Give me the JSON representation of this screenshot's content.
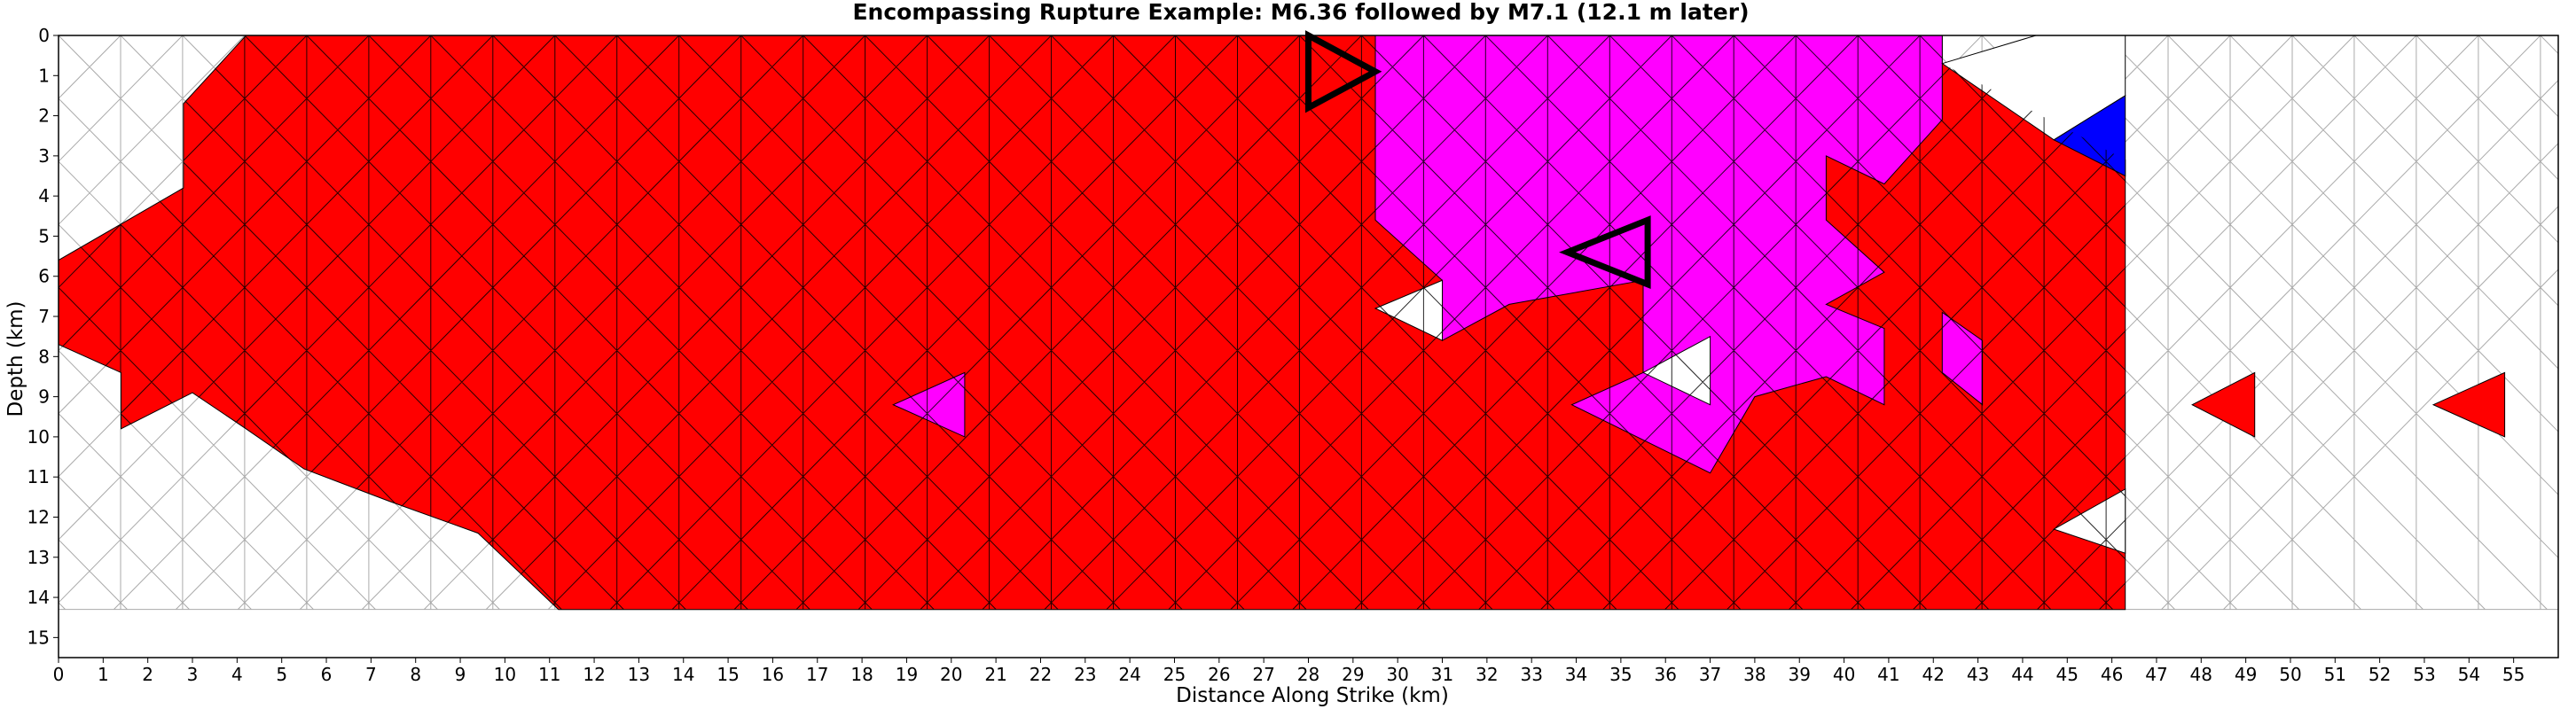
{
  "chart_data": {
    "type": "heatmap",
    "title": "Encompassing Rupture Example: M6.36 followed by M7.1 (12.1 m later)",
    "xlabel": "Distance Along Strike (km)",
    "ylabel": "Depth (km)",
    "xlim": [
      0,
      56
    ],
    "ylim": [
      15.5,
      0
    ],
    "xticks": [
      0,
      1,
      2,
      3,
      4,
      5,
      6,
      7,
      8,
      9,
      10,
      11,
      12,
      13,
      14,
      15,
      16,
      17,
      18,
      19,
      20,
      21,
      22,
      23,
      24,
      25,
      26,
      27,
      28,
      29,
      30,
      31,
      32,
      33,
      34,
      35,
      36,
      37,
      38,
      39,
      40,
      41,
      42,
      43,
      44,
      45,
      46,
      47,
      48,
      49,
      50,
      51,
      52,
      53,
      54,
      55
    ],
    "yticks": [
      0,
      1,
      2,
      3,
      4,
      5,
      6,
      7,
      8,
      9,
      10,
      11,
      12,
      13,
      14,
      15
    ],
    "grid": "triangular mesh",
    "colors": {
      "unruptured": "#ffffff",
      "first_event": "#ff0000",
      "second_event": "#ff00ff",
      "other": "#0000ff",
      "fault_edges": "#000000",
      "unruptured_edges": "#aaaaaa",
      "hypocenter_outline": "#000000"
    },
    "fault_extent": {
      "x": [
        0,
        46.3
      ],
      "depth": [
        0,
        14.3
      ]
    },
    "ruptured_region_first": {
      "outline": [
        [
          4.2,
          0
        ],
        [
          42.2,
          0
        ],
        [
          42.2,
          0.7
        ],
        [
          46.3,
          3.1
        ],
        [
          46.3,
          14.3
        ],
        [
          11.2,
          14.3
        ],
        [
          9.4,
          12.4
        ],
        [
          7.4,
          11.6
        ],
        [
          5.5,
          10.8
        ],
        [
          4.2,
          9.8
        ],
        [
          3,
          8.9
        ],
        [
          1.4,
          9.8
        ],
        [
          1.4,
          8.4
        ],
        [
          0,
          7.7
        ],
        [
          0,
          5.6
        ],
        [
          2.8,
          3.8
        ],
        [
          2.8,
          1.7
        ]
      ]
    },
    "ruptured_region_second": {
      "outline": [
        [
          29.5,
          0
        ],
        [
          42.2,
          0
        ],
        [
          42.2,
          2.1
        ],
        [
          40.9,
          3.7
        ],
        [
          39.6,
          3.0
        ],
        [
          39.6,
          4.6
        ],
        [
          40.9,
          5.9
        ],
        [
          39.6,
          6.7
        ],
        [
          40.9,
          7.3
        ],
        [
          40.9,
          9.2
        ],
        [
          39.6,
          8.5
        ],
        [
          38.0,
          9.0
        ],
        [
          37.0,
          10.9
        ],
        [
          33.9,
          9.2
        ],
        [
          35.5,
          8.4
        ],
        [
          35.5,
          6.1
        ],
        [
          32.5,
          6.7
        ],
        [
          31.0,
          7.6
        ],
        [
          31.0,
          6.1
        ],
        [
          29.5,
          4.6
        ]
      ]
    },
    "unruptured_patches": [
      [
        [
          29.5,
          6.8
        ],
        [
          31.0,
          6.1
        ],
        [
          31.0,
          7.6
        ]
      ],
      [
        [
          35.5,
          8.4
        ],
        [
          37.0,
          7.5
        ],
        [
          37.0,
          9.2
        ]
      ],
      [
        [
          42.2,
          0.7
        ],
        [
          44.3,
          0
        ],
        [
          46.3,
          0
        ],
        [
          46.3,
          1.5
        ],
        [
          44.7,
          2.6
        ]
      ],
      [
        [
          44.7,
          12.3
        ],
        [
          46.3,
          11.3
        ],
        [
          46.3,
          12.9
        ]
      ]
    ],
    "second_event_isolated": [
      [
        [
          18.7,
          9.2
        ],
        [
          20.3,
          8.4
        ],
        [
          20.3,
          10.0
        ]
      ],
      [
        [
          42.2,
          6.9
        ],
        [
          43.1,
          7.6
        ],
        [
          43.1,
          9.2
        ],
        [
          42.2,
          8.4
        ]
      ]
    ],
    "other_event_triangles": [
      [
        [
          44.7,
          2.6
        ],
        [
          46.3,
          1.5
        ],
        [
          46.3,
          3.5
        ]
      ]
    ],
    "isolated_first_event_triangles": [
      [
        [
          47.8,
          9.2
        ],
        [
          49.2,
          8.4
        ],
        [
          49.2,
          10.0
        ]
      ],
      [
        [
          53.2,
          9.2
        ],
        [
          54.8,
          8.4
        ],
        [
          54.8,
          10.0
        ]
      ]
    ],
    "hypocenter_markers": [
      {
        "event": "M6.36",
        "vertices": [
          [
            28.0,
            0
          ],
          [
            29.5,
            0.9
          ],
          [
            28.0,
            1.8
          ]
        ]
      },
      {
        "event": "M7.1",
        "vertices": [
          [
            33.8,
            5.4
          ],
          [
            35.6,
            4.6
          ],
          [
            35.6,
            6.2
          ]
        ]
      }
    ]
  }
}
